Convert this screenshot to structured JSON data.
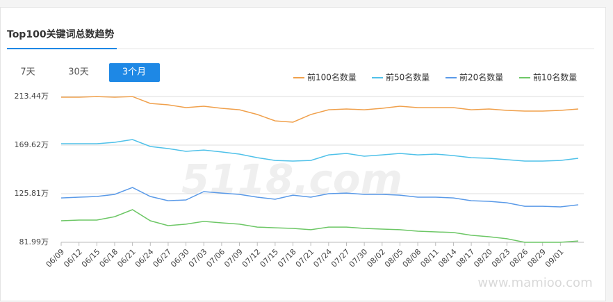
{
  "header": {
    "title": "Top100关键词总数趋势"
  },
  "tabs": {
    "items": [
      "7天",
      "30天",
      "3个月"
    ],
    "active": 2
  },
  "watermarks": [
    "5118.com",
    "www.mamioo.com"
  ],
  "chart_data": {
    "type": "line",
    "categories": [
      "06/09",
      "06/12",
      "06/15",
      "06/18",
      "06/21",
      "06/24",
      "06/27",
      "06/30",
      "07/03",
      "07/06",
      "07/09",
      "07/12",
      "07/15",
      "07/18",
      "07/21",
      "07/24",
      "07/27",
      "07/30",
      "08/02",
      "08/05",
      "08/08",
      "08/11",
      "08/14",
      "08/17",
      "08/20",
      "08/23",
      "08/26",
      "08/29",
      "09/01",
      null
    ],
    "series": [
      {
        "name": "前100名数量",
        "color": "#f0a04b",
        "values": [
          212.8,
          212.8,
          213.4,
          212.8,
          213.4,
          207.2,
          205.9,
          203.4,
          204.7,
          202.8,
          201.5,
          197.2,
          191.5,
          190.3,
          197.2,
          201.5,
          202.2,
          201.5,
          202.8,
          204.7,
          203.4,
          203.4,
          203.4,
          201.5,
          202.2,
          200.9,
          200.3,
          200.3,
          200.9,
          202.2
        ]
      },
      {
        "name": "前50名数量",
        "color": "#4fc1e9",
        "values": [
          170.9,
          170.9,
          170.9,
          172.1,
          174.6,
          168.4,
          166.5,
          164.0,
          165.2,
          163.4,
          161.5,
          158.3,
          155.8,
          155.2,
          155.8,
          160.8,
          162.1,
          159.6,
          160.8,
          162.1,
          160.8,
          161.5,
          160.2,
          158.3,
          157.7,
          156.5,
          155.2,
          155.2,
          155.8,
          157.7
        ]
      },
      {
        "name": "前20名数量",
        "color": "#5a9ae8",
        "values": [
          122.0,
          122.7,
          123.3,
          125.2,
          131.4,
          123.3,
          119.5,
          120.2,
          127.7,
          126.4,
          125.2,
          122.7,
          120.8,
          124.5,
          122.7,
          125.8,
          126.4,
          125.2,
          125.2,
          124.5,
          122.7,
          122.7,
          122.0,
          119.5,
          118.9,
          117.6,
          114.5,
          114.5,
          113.9,
          115.8
        ]
      },
      {
        "name": "前10名数量",
        "color": "#6dc766",
        "values": [
          101.4,
          102.0,
          102.0,
          105.1,
          111.4,
          101.4,
          97.0,
          98.3,
          100.8,
          99.5,
          98.3,
          95.7,
          95.1,
          94.5,
          93.3,
          95.7,
          95.7,
          94.5,
          93.9,
          93.3,
          92.0,
          91.4,
          90.8,
          88.3,
          87.0,
          85.2,
          82.0,
          82.0,
          82.0,
          83.2
        ]
      }
    ],
    "ylim": [
      81.99,
      213.44
    ],
    "yticks": [
      {
        "value": 81.99,
        "label": "81.99万"
      },
      {
        "value": 125.81,
        "label": "125.81万"
      },
      {
        "value": 169.62,
        "label": "169.62万"
      },
      {
        "value": 213.44,
        "label": "213.44万"
      }
    ],
    "grid": true,
    "legend": "top-right"
  }
}
